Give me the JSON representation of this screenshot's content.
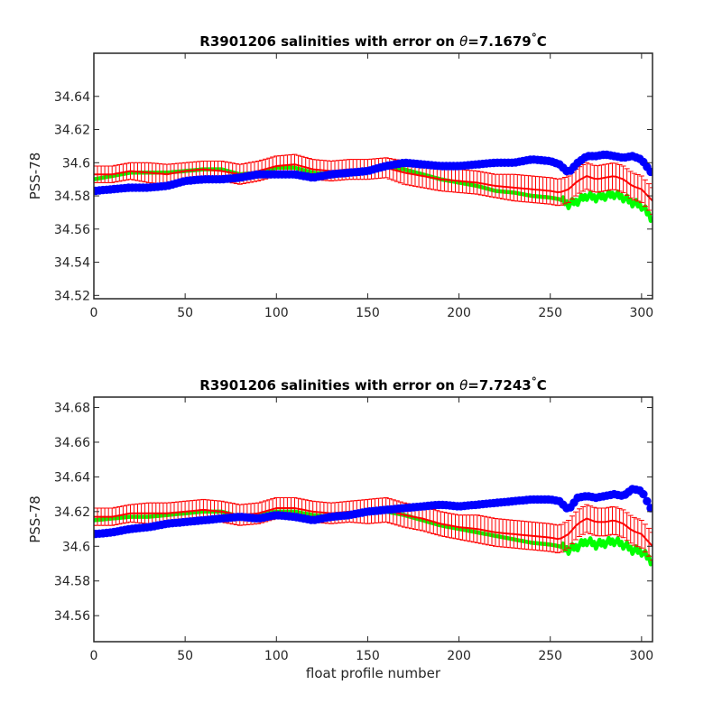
{
  "chart_data": [
    {
      "type": "line",
      "title_pre": "R3901206 salinities with error on ",
      "title_theta": "θ",
      "title_post": "=7.1679",
      "title_deg": "°",
      "title_unit": "C",
      "xlabel": "",
      "ylabel": "PSS-78",
      "xlim": [
        0,
        306
      ],
      "ylim": [
        34.518,
        34.666
      ],
      "xticks": [
        "0",
        "50",
        "100",
        "150",
        "200",
        "250",
        "300"
      ],
      "yticks": [
        "34.52",
        "34.54",
        "34.56",
        "34.58",
        "34.6",
        "34.62",
        "34.64"
      ],
      "series": [
        {
          "role": "float salinity",
          "color": "#0000ff",
          "x": [
            0,
            10,
            20,
            30,
            40,
            50,
            60,
            70,
            80,
            90,
            100,
            110,
            120,
            130,
            140,
            150,
            160,
            170,
            180,
            190,
            200,
            210,
            220,
            230,
            240,
            250,
            255,
            260,
            265,
            270,
            275,
            280,
            285,
            290,
            295,
            300,
            306
          ],
          "y": [
            34.583,
            34.584,
            34.585,
            34.585,
            34.586,
            34.589,
            34.59,
            34.59,
            34.591,
            34.593,
            34.593,
            34.593,
            34.591,
            34.593,
            34.594,
            34.595,
            34.598,
            34.6,
            34.599,
            34.598,
            34.598,
            34.599,
            34.6,
            34.6,
            34.602,
            34.601,
            34.599,
            34.594,
            34.6,
            34.604,
            34.604,
            34.605,
            34.604,
            34.603,
            34.604,
            34.602,
            34.593
          ]
        },
        {
          "role": "mapped salinity",
          "color": "#ff0000",
          "x": [
            0,
            10,
            20,
            30,
            40,
            50,
            60,
            70,
            80,
            90,
            100,
            110,
            120,
            130,
            140,
            150,
            160,
            170,
            180,
            190,
            200,
            210,
            220,
            230,
            240,
            250,
            255,
            260,
            265,
            270,
            275,
            280,
            285,
            290,
            295,
            300,
            306
          ],
          "y": [
            34.593,
            34.593,
            34.595,
            34.594,
            34.593,
            34.595,
            34.596,
            34.595,
            34.593,
            34.595,
            34.598,
            34.599,
            34.596,
            34.595,
            34.596,
            34.596,
            34.597,
            34.594,
            34.592,
            34.59,
            34.589,
            34.588,
            34.586,
            34.585,
            34.584,
            34.583,
            34.582,
            34.584,
            34.589,
            34.592,
            34.59,
            34.591,
            34.592,
            34.59,
            34.586,
            34.584,
            34.577
          ],
          "error": [
            0.005,
            0.005,
            0.005,
            0.006,
            0.006,
            0.005,
            0.005,
            0.006,
            0.006,
            0.006,
            0.006,
            0.006,
            0.006,
            0.006,
            0.006,
            0.006,
            0.006,
            0.007,
            0.007,
            0.007,
            0.007,
            0.007,
            0.007,
            0.008,
            0.008,
            0.008,
            0.008,
            0.008,
            0.008,
            0.008,
            0.008,
            0.008,
            0.008,
            0.008,
            0.008,
            0.008,
            0.008
          ]
        },
        {
          "role": "calibrated salinity",
          "color": "#00ff00",
          "x": [
            0,
            10,
            20,
            30,
            40,
            50,
            60,
            70,
            80,
            90,
            100,
            110,
            120,
            130,
            140,
            150,
            160,
            170,
            180,
            190,
            200,
            210,
            220,
            230,
            240,
            250,
            255,
            260,
            265,
            270,
            275,
            280,
            285,
            290,
            295,
            300,
            306
          ],
          "y": [
            34.59,
            34.592,
            34.594,
            34.594,
            34.594,
            34.595,
            34.596,
            34.596,
            34.593,
            34.594,
            34.597,
            34.597,
            34.594,
            34.593,
            34.593,
            34.595,
            34.598,
            34.596,
            34.593,
            34.59,
            34.588,
            34.586,
            34.583,
            34.582,
            34.58,
            34.579,
            34.578,
            34.575,
            34.577,
            34.58,
            34.579,
            34.58,
            34.581,
            34.579,
            34.576,
            34.574,
            34.566
          ]
        }
      ]
    },
    {
      "type": "line",
      "title_pre": "R3901206 salinities with error on ",
      "title_theta": "θ",
      "title_post": "=7.7243",
      "title_deg": "°",
      "title_unit": "C",
      "xlabel": "float profile number",
      "ylabel": "PSS-78",
      "xlim": [
        0,
        306
      ],
      "ylim": [
        34.545,
        34.686
      ],
      "xticks": [
        "0",
        "50",
        "100",
        "150",
        "200",
        "250",
        "300"
      ],
      "yticks": [
        "34.56",
        "34.58",
        "34.6",
        "34.62",
        "34.64",
        "34.66",
        "34.68"
      ],
      "series": [
        {
          "role": "float salinity",
          "color": "#0000ff",
          "x": [
            0,
            10,
            20,
            30,
            40,
            50,
            60,
            70,
            80,
            90,
            100,
            110,
            120,
            130,
            140,
            150,
            160,
            170,
            180,
            190,
            200,
            210,
            220,
            230,
            240,
            250,
            255,
            260,
            265,
            270,
            275,
            280,
            285,
            290,
            295,
            300,
            306
          ],
          "y": [
            34.607,
            34.608,
            34.61,
            34.611,
            34.613,
            34.614,
            34.615,
            34.616,
            34.617,
            34.616,
            34.618,
            34.617,
            34.615,
            34.617,
            34.618,
            34.62,
            34.621,
            34.622,
            34.623,
            34.624,
            34.623,
            34.624,
            34.625,
            34.626,
            34.627,
            34.627,
            34.626,
            34.621,
            34.628,
            34.629,
            34.628,
            34.629,
            34.63,
            34.629,
            34.633,
            34.632,
            34.62
          ]
        },
        {
          "role": "mapped salinity",
          "color": "#ff0000",
          "x": [
            0,
            10,
            20,
            30,
            40,
            50,
            60,
            70,
            80,
            90,
            100,
            110,
            120,
            130,
            140,
            150,
            160,
            170,
            180,
            190,
            200,
            210,
            220,
            230,
            240,
            250,
            255,
            260,
            265,
            270,
            275,
            280,
            285,
            290,
            295,
            300,
            306
          ],
          "y": [
            34.617,
            34.617,
            34.619,
            34.619,
            34.619,
            34.62,
            34.621,
            34.62,
            34.618,
            34.619,
            34.622,
            34.622,
            34.62,
            34.619,
            34.62,
            34.62,
            34.621,
            34.618,
            34.616,
            34.613,
            34.611,
            34.61,
            34.608,
            34.607,
            34.606,
            34.605,
            34.604,
            34.607,
            34.613,
            34.616,
            34.614,
            34.614,
            34.615,
            34.613,
            34.609,
            34.607,
            34.6
          ],
          "error": [
            0.005,
            0.005,
            0.005,
            0.006,
            0.006,
            0.006,
            0.006,
            0.006,
            0.006,
            0.006,
            0.006,
            0.006,
            0.006,
            0.006,
            0.006,
            0.007,
            0.007,
            0.007,
            0.007,
            0.007,
            0.007,
            0.008,
            0.008,
            0.008,
            0.008,
            0.008,
            0.008,
            0.008,
            0.008,
            0.008,
            0.008,
            0.008,
            0.008,
            0.008,
            0.008,
            0.008,
            0.008
          ]
        },
        {
          "role": "calibrated salinity",
          "color": "#00ff00",
          "x": [
            0,
            10,
            20,
            30,
            40,
            50,
            60,
            70,
            80,
            90,
            100,
            110,
            120,
            130,
            140,
            150,
            160,
            170,
            180,
            190,
            200,
            210,
            220,
            230,
            240,
            250,
            255,
            260,
            265,
            270,
            275,
            280,
            285,
            290,
            295,
            300,
            306
          ],
          "y": [
            34.615,
            34.616,
            34.617,
            34.617,
            34.618,
            34.619,
            34.62,
            34.62,
            34.617,
            34.618,
            34.62,
            34.62,
            34.618,
            34.617,
            34.617,
            34.619,
            34.62,
            34.618,
            34.615,
            34.612,
            34.61,
            34.608,
            34.606,
            34.604,
            34.602,
            34.601,
            34.6,
            34.598,
            34.6,
            34.603,
            34.601,
            34.602,
            34.603,
            34.601,
            34.598,
            34.597,
            34.591
          ]
        }
      ]
    }
  ]
}
